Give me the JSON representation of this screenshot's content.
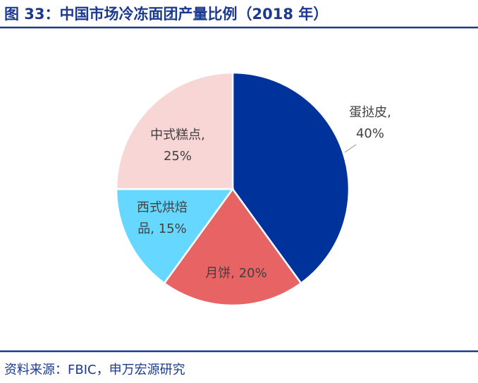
{
  "chart_data": {
    "type": "pie",
    "title": "图 33：中国市场冷冻面团产量比例（2018 年）",
    "source": "资料来源：FBIC，申万宏源研究",
    "values": [
      40,
      20,
      15,
      25
    ],
    "value_labels": [
      "蛋挞皮, 40%",
      "月饼, 20%",
      "西式烘焙品, 15%",
      "中式糕点, 25%"
    ],
    "colors": [
      "#00329b",
      "#e86464",
      "#66d8ff",
      "#f8d6d6"
    ]
  }
}
